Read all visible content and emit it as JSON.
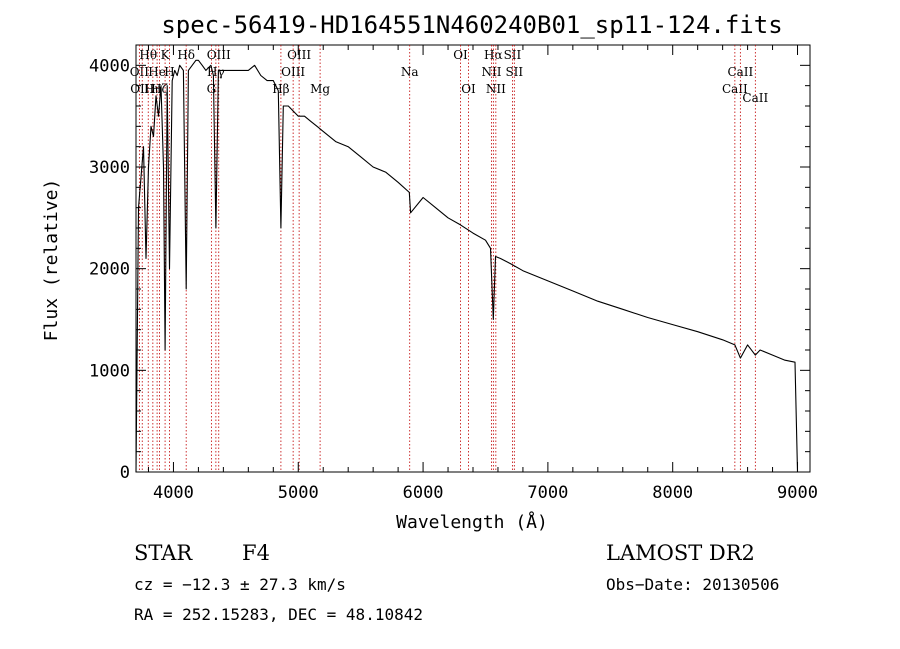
{
  "chart_data": {
    "type": "line",
    "title": "spec-56419-HD164551N460240B01_sp11-124.fits",
    "xlabel": "Wavelength (Å)",
    "ylabel": "Flux (relative)",
    "xlim": [
      3700,
      9100
    ],
    "ylim": [
      0,
      4200
    ],
    "xticks": [
      4000,
      5000,
      6000,
      7000,
      8000,
      9000
    ],
    "yticks": [
      0,
      1000,
      2000,
      3000,
      4000
    ],
    "grid": false,
    "series": [
      {
        "x": [
          3700,
          3720,
          3740,
          3760,
          3780,
          3800,
          3820,
          3840,
          3860,
          3880,
          3900,
          3920,
          3933,
          3950,
          3968,
          3990,
          4010,
          4030,
          4050,
          4080,
          4102,
          4120,
          4150,
          4180,
          4200,
          4230,
          4260,
          4300,
          4320,
          4340,
          4360,
          4380,
          4400,
          4450,
          4500,
          4550,
          4600,
          4650,
          4700,
          4750,
          4800,
          4840,
          4861,
          4880,
          4920,
          4960,
          5000,
          5050,
          5100,
          5150,
          5200,
          5300,
          5400,
          5500,
          5600,
          5700,
          5800,
          5890,
          5900,
          6000,
          6100,
          6200,
          6300,
          6400,
          6500,
          6540,
          6563,
          6580,
          6620,
          6700,
          6800,
          7000,
          7200,
          7400,
          7600,
          7800,
          8000,
          8200,
          8400,
          8498,
          8542,
          8600,
          8662,
          8700,
          8800,
          8900,
          8980,
          9000
        ],
        "y": [
          0,
          2600,
          2900,
          3200,
          2100,
          3000,
          3400,
          3300,
          3700,
          3500,
          3800,
          3000,
          1200,
          3800,
          2000,
          3850,
          3950,
          3900,
          4000,
          3950,
          1800,
          3950,
          4000,
          4050,
          4050,
          4000,
          3950,
          4000,
          3900,
          2400,
          3950,
          3950,
          3950,
          3950,
          3950,
          3950,
          3950,
          4000,
          3900,
          3850,
          3850,
          3750,
          2400,
          3600,
          3600,
          3550,
          3500,
          3500,
          3450,
          3400,
          3350,
          3250,
          3200,
          3100,
          3000,
          2950,
          2850,
          2750,
          2550,
          2700,
          2600,
          2500,
          2430,
          2350,
          2280,
          2200,
          1500,
          2120,
          2100,
          2050,
          1980,
          1880,
          1780,
          1680,
          1600,
          1520,
          1450,
          1380,
          1300,
          1250,
          1120,
          1250,
          1150,
          1200,
          1150,
          1100,
          1080,
          0
        ]
      }
    ],
    "line_markers": [
      {
        "wavelength": 3727,
        "label": "OII",
        "row": 1
      },
      {
        "wavelength": 3750,
        "label": "OIII",
        "row": 2
      },
      {
        "wavelength": 3798,
        "label": "Hθ",
        "row": 0
      },
      {
        "wavelength": 3835,
        "label": "Hη",
        "row": 2
      },
      {
        "wavelength": 3869,
        "label": "He",
        "row": 1
      },
      {
        "wavelength": 3889,
        "label": "Hζ",
        "row": 2
      },
      {
        "wavelength": 3933,
        "label": "K",
        "row": 0
      },
      {
        "wavelength": 3968,
        "label": "H",
        "row": 1
      },
      {
        "wavelength": 4102,
        "label": "Hδ",
        "row": 0
      },
      {
        "wavelength": 4304,
        "label": "G",
        "row": 2
      },
      {
        "wavelength": 4340,
        "label": "Hγ",
        "row": 1
      },
      {
        "wavelength": 4363,
        "label": "OIII",
        "row": 0
      },
      {
        "wavelength": 4861,
        "label": "Hβ",
        "row": 2
      },
      {
        "wavelength": 4959,
        "label": "OIII",
        "row": 1
      },
      {
        "wavelength": 5007,
        "label": "OIII",
        "row": 0
      },
      {
        "wavelength": 5175,
        "label": "Mg",
        "row": 2
      },
      {
        "wavelength": 5893,
        "label": "Na",
        "row": 1
      },
      {
        "wavelength": 6300,
        "label": "OI",
        "row": 0
      },
      {
        "wavelength": 6364,
        "label": "OI",
        "row": 2
      },
      {
        "wavelength": 6548,
        "label": "NII",
        "row": 1
      },
      {
        "wavelength": 6563,
        "label": "Hα",
        "row": 0
      },
      {
        "wavelength": 6583,
        "label": "NII",
        "row": 2
      },
      {
        "wavelength": 6716,
        "label": "SII",
        "row": 0
      },
      {
        "wavelength": 6731,
        "label": "SII",
        "row": 1
      },
      {
        "wavelength": 8498,
        "label": "CaII",
        "row": 2
      },
      {
        "wavelength": 8542,
        "label": "CaII",
        "row": 1
      },
      {
        "wavelength": 8662,
        "label": "CaII",
        "row": 3
      }
    ]
  },
  "info": {
    "class_label": "STAR",
    "subclass_label": "F4",
    "survey": "LAMOST DR2",
    "cz": "cz = −12.3 ± 27.3 km/s",
    "obs_date": "Obs−Date: 20130506",
    "coords": "RA = 252.15283, DEC =  48.10842"
  }
}
